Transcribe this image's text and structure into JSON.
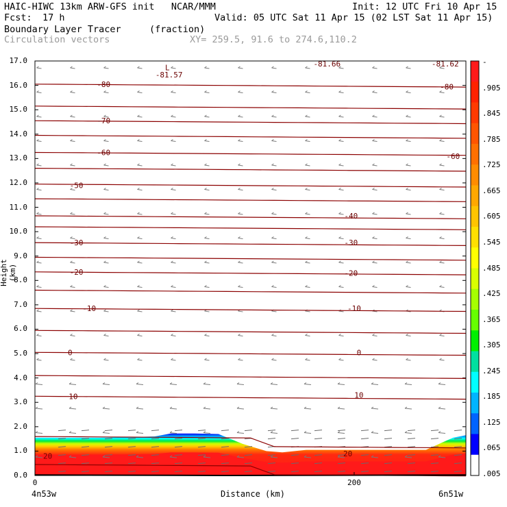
{
  "header": {
    "model": "HAIC-HIWC 13km ARW-GFS init   NCAR/MMM",
    "init": "Init: 12 UTC Fri 10 Apr 15",
    "fcst_label": "Fcst:",
    "fcst_value": "17 h",
    "valid": "Valid: 05 UTC Sat 11 Apr 15 (02 LST Sat 11 Apr 15)",
    "field": "Boundary Layer Tracer",
    "units": "(fraction)",
    "vectors": "Circulation vectors",
    "xy": "XY= 259.5, 91.6 to 274.6,110.2"
  },
  "chart_data": {
    "type": "heatmap",
    "title": "Boundary Layer Tracer",
    "ylabel": "Height (km)",
    "xlabel": "Distance (km)",
    "ylim": [
      0,
      17
    ],
    "xlim": [
      0,
      270
    ],
    "yticks": [
      "0.0",
      "1.0",
      "2.0",
      "3.0",
      "4.0",
      "5.0",
      "6.0",
      "7.0",
      "8.0",
      "9.0",
      "10.0",
      "11.0",
      "12.0",
      "13.0",
      "14.0",
      "15.0",
      "16.0",
      "17.0"
    ],
    "xticks": [
      {
        "value": 0,
        "label": "0"
      },
      {
        "value": 200,
        "label": "200"
      }
    ],
    "x_endpoints": {
      "left": "4n53w",
      "right": "6n51w"
    },
    "colorbar": {
      "labels": [
        "-",
        ".905",
        ".845",
        ".785",
        ".725",
        ".665",
        ".605",
        ".545",
        ".485",
        ".425",
        ".365",
        ".305",
        ".245",
        ".185",
        ".125",
        ".065",
        ".005"
      ],
      "colors": [
        "#ff1a1a",
        "#ff2200",
        "#ff3a00",
        "#ff5500",
        "#ff7000",
        "#ff8c00",
        "#ffa800",
        "#ffc400",
        "#ffe000",
        "#ffff00",
        "#d9ff00",
        "#a6ff00",
        "#66ff00",
        "#00f000",
        "#00e0a0",
        "#00ffff",
        "#00b4ff",
        "#0064ff",
        "#0000ff",
        "#ffffff"
      ]
    },
    "tracer_top_km": [
      [
        0,
        1.55
      ],
      [
        20,
        1.55
      ],
      [
        40,
        1.55
      ],
      [
        60,
        1.57
      ],
      [
        75,
        1.6
      ],
      [
        85,
        1.72
      ],
      [
        100,
        1.72
      ],
      [
        115,
        1.7
      ],
      [
        130,
        1.3
      ],
      [
        145,
        1.0
      ],
      [
        155,
        0.95
      ],
      [
        170,
        1.05
      ],
      [
        200,
        1.05
      ],
      [
        230,
        1.05
      ],
      [
        245,
        1.05
      ],
      [
        255,
        1.35
      ],
      [
        262,
        1.55
      ],
      [
        270,
        1.65
      ]
    ],
    "contour_labels": [
      {
        "text": "-80",
        "x": 43,
        "y": 16.05
      },
      {
        "text": "-80",
        "x": 258,
        "y": 15.95
      },
      {
        "text": "-70",
        "x": 43,
        "y": 14.55
      },
      {
        "text": "-60",
        "x": 43,
        "y": 13.25
      },
      {
        "text": "-60",
        "x": 262,
        "y": 13.1
      },
      {
        "text": "-50",
        "x": 26,
        "y": 11.9
      },
      {
        "text": "-40",
        "x": 198,
        "y": 10.65
      },
      {
        "text": "-30",
        "x": 26,
        "y": 9.55
      },
      {
        "text": "-30",
        "x": 198,
        "y": 9.55
      },
      {
        "text": "-20",
        "x": 26,
        "y": 8.35
      },
      {
        "text": "-20",
        "x": 198,
        "y": 8.3
      },
      {
        "text": "-10",
        "x": 34,
        "y": 6.85
      },
      {
        "text": "-10",
        "x": 200,
        "y": 6.85
      },
      {
        "text": "0",
        "x": 22,
        "y": 5.05
      },
      {
        "text": "0",
        "x": 203,
        "y": 5.05
      },
      {
        "text": "10",
        "x": 24,
        "y": 3.25
      },
      {
        "text": "10",
        "x": 203,
        "y": 3.3
      },
      {
        "text": "20",
        "x": 8,
        "y": 0.8
      },
      {
        "text": "20",
        "x": 196,
        "y": 0.9
      }
    ],
    "annotations": [
      {
        "text": "L",
        "x": 83,
        "y": 16.85
      },
      {
        "text": "-81.57",
        "x": 84,
        "y": 16.55
      },
      {
        "text": "-81.66",
        "x": 183,
        "y": 17.0
      },
      {
        "text": "-81.62",
        "x": 257,
        "y": 17.0
      }
    ]
  }
}
